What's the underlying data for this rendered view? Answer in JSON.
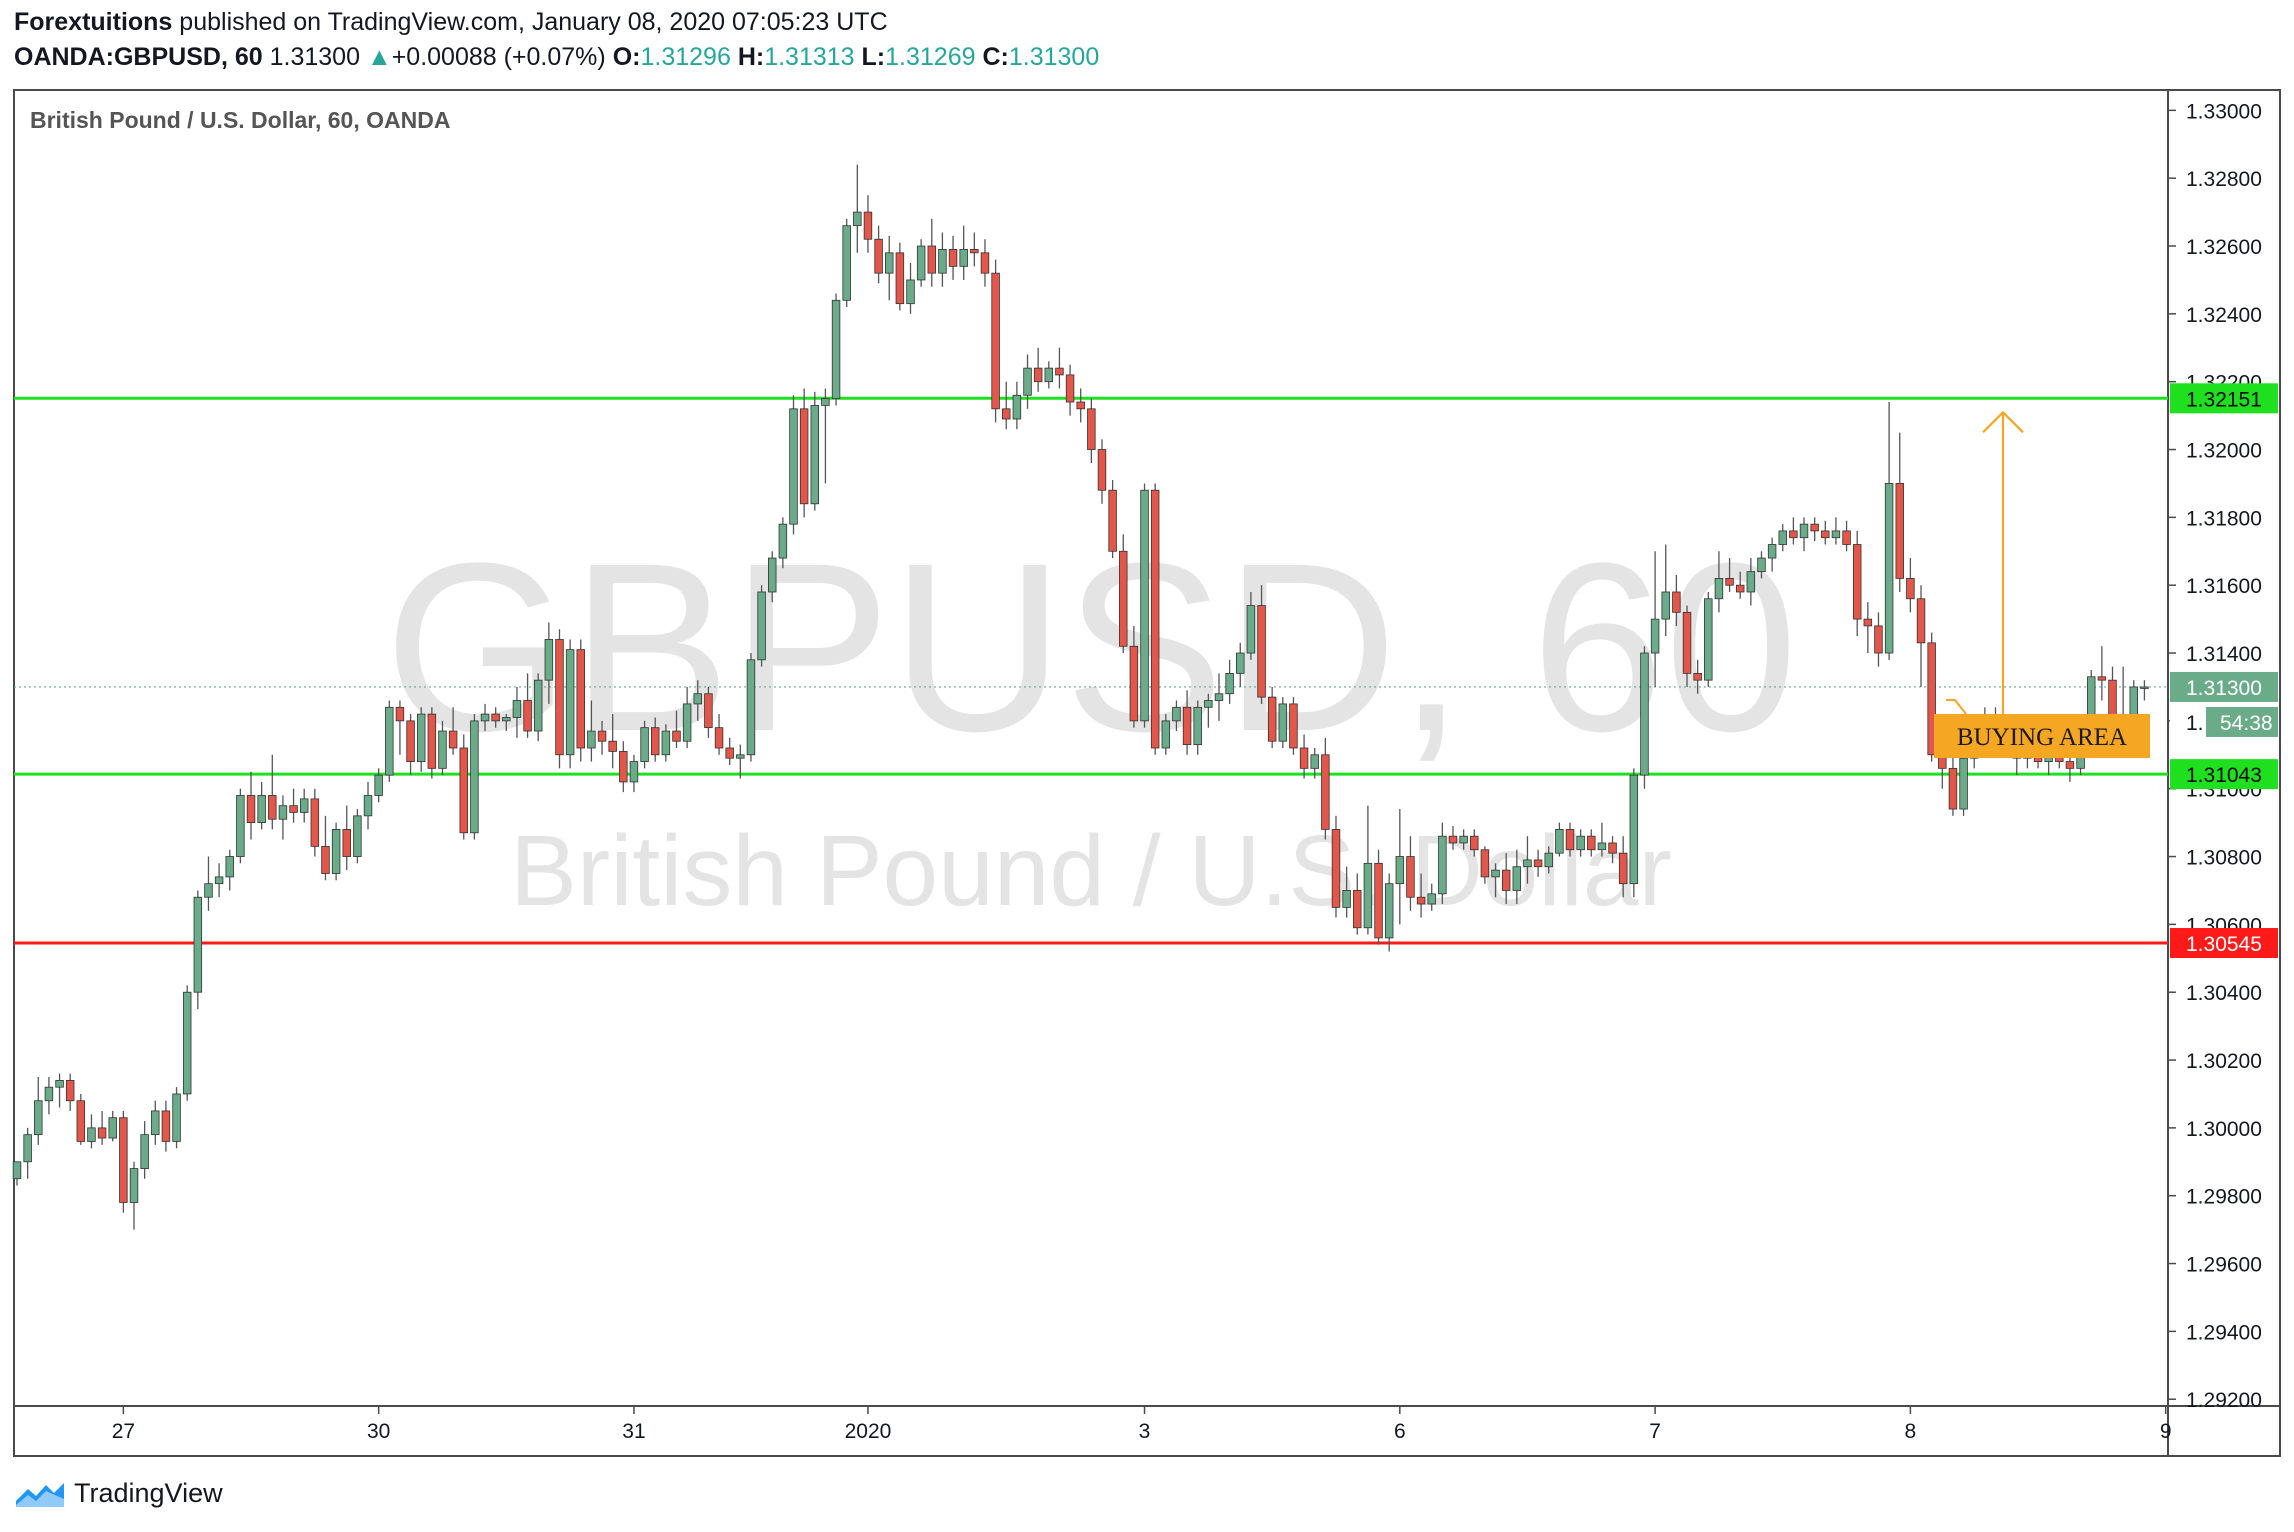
{
  "header": {
    "author": "Forextuitions",
    "published_text": "published on TradingView.com, January 08, 2020 07:05:23 UTC",
    "symbol": "OANDA:GBPUSD, 60",
    "last": "1.31300",
    "change": "+0.00088 (+0.07%)",
    "o_label": "O:",
    "o_val": "1.31296",
    "h_label": "H:",
    "h_val": "1.31313",
    "l_label": "L:",
    "l_val": "1.31269",
    "c_label": "C:",
    "c_val": "1.31300"
  },
  "chart_data": {
    "type": "candlestick",
    "title": "British Pound / U.S. Dollar, 60, OANDA",
    "watermark_symbol": "GBPUSD, 60",
    "watermark_name": "British Pound / U.S. Dollar",
    "ylim": [
      1.2918,
      1.3306
    ],
    "y_ticks": [
      "1.33000",
      "1.32800",
      "1.32600",
      "1.32400",
      "1.32200",
      "1.32000",
      "1.31800",
      "1.31600",
      "1.31400",
      "1.31200",
      "1.31000",
      "1.30800",
      "1.30600",
      "1.30400",
      "1.30200",
      "1.30000",
      "1.29800",
      "1.29600",
      "1.29400",
      "1.29200"
    ],
    "x_labels": [
      {
        "label": "27",
        "index": 10
      },
      {
        "label": "30",
        "index": 34
      },
      {
        "label": "31",
        "index": 58
      },
      {
        "label": "2020",
        "index": 80
      },
      {
        "label": "3",
        "index": 106
      },
      {
        "label": "6",
        "index": 130
      },
      {
        "label": "7",
        "index": 154
      },
      {
        "label": "8",
        "index": 178
      },
      {
        "label": "9",
        "index": 202
      }
    ],
    "x_count": 203,
    "candles": [
      [
        1.2985,
        1.299,
        1.2983,
        1.299
      ],
      [
        1.299,
        1.3,
        1.2985,
        1.2998
      ],
      [
        1.2998,
        1.3015,
        1.2995,
        1.3008
      ],
      [
        1.3008,
        1.3015,
        1.3004,
        1.3012
      ],
      [
        1.3012,
        1.3016,
        1.3006,
        1.3014
      ],
      [
        1.3014,
        1.3016,
        1.3005,
        1.3008
      ],
      [
        1.3008,
        1.301,
        1.2995,
        1.2996
      ],
      [
        1.2996,
        1.3004,
        1.2994,
        1.3
      ],
      [
        1.3,
        1.3005,
        1.2995,
        1.2997
      ],
      [
        1.2997,
        1.3005,
        1.2996,
        1.3003
      ],
      [
        1.3003,
        1.3005,
        1.2975,
        1.2978
      ],
      [
        1.2978,
        1.299,
        1.297,
        1.2988
      ],
      [
        1.2988,
        1.3002,
        1.2985,
        1.2998
      ],
      [
        1.2998,
        1.3008,
        1.2995,
        1.3005
      ],
      [
        1.3005,
        1.3008,
        1.2993,
        1.2996
      ],
      [
        1.2996,
        1.3012,
        1.2994,
        1.301
      ],
      [
        1.301,
        1.3042,
        1.3008,
        1.304
      ],
      [
        1.304,
        1.307,
        1.3035,
        1.3068
      ],
      [
        1.3068,
        1.308,
        1.3064,
        1.3072
      ],
      [
        1.3072,
        1.3078,
        1.3068,
        1.3074
      ],
      [
        1.3074,
        1.3082,
        1.307,
        1.308
      ],
      [
        1.308,
        1.31,
        1.3078,
        1.3098
      ],
      [
        1.3098,
        1.3105,
        1.3085,
        1.309
      ],
      [
        1.309,
        1.3102,
        1.3088,
        1.3098
      ],
      [
        1.3098,
        1.311,
        1.3088,
        1.3091
      ],
      [
        1.3091,
        1.3098,
        1.3085,
        1.3095
      ],
      [
        1.3095,
        1.31,
        1.309,
        1.3093
      ],
      [
        1.3093,
        1.31,
        1.309,
        1.3097
      ],
      [
        1.3097,
        1.31,
        1.308,
        1.3083
      ],
      [
        1.3083,
        1.3092,
        1.3073,
        1.3075
      ],
      [
        1.3075,
        1.309,
        1.3073,
        1.3088
      ],
      [
        1.3088,
        1.3095,
        1.3076,
        1.308
      ],
      [
        1.308,
        1.3094,
        1.3078,
        1.3092
      ],
      [
        1.3092,
        1.3102,
        1.3088,
        1.3098
      ],
      [
        1.3098,
        1.3106,
        1.3096,
        1.3104
      ],
      [
        1.3104,
        1.3126,
        1.3102,
        1.3124
      ],
      [
        1.3124,
        1.3126,
        1.311,
        1.312
      ],
      [
        1.312,
        1.3122,
        1.3104,
        1.3108
      ],
      [
        1.3108,
        1.3124,
        1.3105,
        1.3122
      ],
      [
        1.3122,
        1.3124,
        1.3103,
        1.3106
      ],
      [
        1.3106,
        1.312,
        1.3104,
        1.3117
      ],
      [
        1.3117,
        1.3124,
        1.311,
        1.3112
      ],
      [
        1.3112,
        1.3116,
        1.3085,
        1.3087
      ],
      [
        1.3087,
        1.3122,
        1.3085,
        1.312
      ],
      [
        1.312,
        1.3125,
        1.3117,
        1.3122
      ],
      [
        1.3122,
        1.3124,
        1.3118,
        1.312
      ],
      [
        1.312,
        1.3122,
        1.3117,
        1.3121
      ],
      [
        1.3121,
        1.313,
        1.3115,
        1.3126
      ],
      [
        1.3126,
        1.3134,
        1.3115,
        1.3117
      ],
      [
        1.3117,
        1.3134,
        1.3114,
        1.3132
      ],
      [
        1.3132,
        1.3149,
        1.3125,
        1.3144
      ],
      [
        1.3144,
        1.3147,
        1.3106,
        1.311
      ],
      [
        1.311,
        1.3144,
        1.3106,
        1.3141
      ],
      [
        1.3141,
        1.3144,
        1.3108,
        1.3112
      ],
      [
        1.3112,
        1.3126,
        1.3108,
        1.3117
      ],
      [
        1.3117,
        1.312,
        1.311,
        1.3114
      ],
      [
        1.3114,
        1.3122,
        1.3106,
        1.3111
      ],
      [
        1.3111,
        1.3114,
        1.3099,
        1.3102
      ],
      [
        1.3102,
        1.311,
        1.3099,
        1.3108
      ],
      [
        1.3108,
        1.312,
        1.3106,
        1.3118
      ],
      [
        1.3118,
        1.3121,
        1.3108,
        1.311
      ],
      [
        1.311,
        1.3119,
        1.3108,
        1.3117
      ],
      [
        1.3117,
        1.3123,
        1.3112,
        1.3114
      ],
      [
        1.3114,
        1.313,
        1.3112,
        1.3125
      ],
      [
        1.3125,
        1.3132,
        1.312,
        1.3128
      ],
      [
        1.3128,
        1.313,
        1.3115,
        1.3118
      ],
      [
        1.3118,
        1.3122,
        1.311,
        1.3112
      ],
      [
        1.3112,
        1.3115,
        1.3107,
        1.3109
      ],
      [
        1.3109,
        1.3113,
        1.3103,
        1.311
      ],
      [
        1.311,
        1.314,
        1.3108,
        1.3138
      ],
      [
        1.3138,
        1.316,
        1.3136,
        1.3158
      ],
      [
        1.3158,
        1.317,
        1.3155,
        1.3168
      ],
      [
        1.3168,
        1.318,
        1.3165,
        1.3178
      ],
      [
        1.3178,
        1.3216,
        1.3175,
        1.3212
      ],
      [
        1.3212,
        1.3218,
        1.318,
        1.3184
      ],
      [
        1.3184,
        1.3217,
        1.3182,
        1.3213
      ],
      [
        1.3213,
        1.3218,
        1.319,
        1.3215
      ],
      [
        1.3215,
        1.3246,
        1.3213,
        1.3244
      ],
      [
        1.3244,
        1.3268,
        1.3242,
        1.3266
      ],
      [
        1.3266,
        1.3284,
        1.3258,
        1.327
      ],
      [
        1.327,
        1.3275,
        1.3258,
        1.3262
      ],
      [
        1.3262,
        1.3266,
        1.3249,
        1.3252
      ],
      [
        1.3252,
        1.3263,
        1.3244,
        1.3258
      ],
      [
        1.3258,
        1.3261,
        1.3241,
        1.3243
      ],
      [
        1.3243,
        1.3255,
        1.324,
        1.325
      ],
      [
        1.325,
        1.3262,
        1.3248,
        1.326
      ],
      [
        1.326,
        1.3268,
        1.3248,
        1.3252
      ],
      [
        1.3252,
        1.3264,
        1.3248,
        1.3259
      ],
      [
        1.3259,
        1.3263,
        1.325,
        1.3254
      ],
      [
        1.3254,
        1.3266,
        1.325,
        1.3259
      ],
      [
        1.3259,
        1.3264,
        1.3254,
        1.3258
      ],
      [
        1.3258,
        1.3262,
        1.3248,
        1.3252
      ],
      [
        1.3252,
        1.3256,
        1.3208,
        1.3212
      ],
      [
        1.3212,
        1.322,
        1.3206,
        1.3209
      ],
      [
        1.3209,
        1.322,
        1.3206,
        1.3216
      ],
      [
        1.3216,
        1.3228,
        1.3212,
        1.3224
      ],
      [
        1.3224,
        1.323,
        1.3217,
        1.322
      ],
      [
        1.322,
        1.3226,
        1.3218,
        1.3224
      ],
      [
        1.3224,
        1.323,
        1.3218,
        1.3222
      ],
      [
        1.3222,
        1.3225,
        1.321,
        1.3214
      ],
      [
        1.3214,
        1.3218,
        1.3208,
        1.3212
      ],
      [
        1.3212,
        1.3215,
        1.3196,
        1.32
      ],
      [
        1.32,
        1.3203,
        1.3184,
        1.3188
      ],
      [
        1.3188,
        1.3191,
        1.3168,
        1.317
      ],
      [
        1.317,
        1.3175,
        1.314,
        1.3142
      ],
      [
        1.3142,
        1.3148,
        1.3118,
        1.312
      ],
      [
        1.312,
        1.319,
        1.3118,
        1.3188
      ],
      [
        1.3188,
        1.319,
        1.311,
        1.3112
      ],
      [
        1.3112,
        1.3122,
        1.311,
        1.312
      ],
      [
        1.312,
        1.3126,
        1.3117,
        1.3124
      ],
      [
        1.3124,
        1.3129,
        1.311,
        1.3113
      ],
      [
        1.3113,
        1.3126,
        1.311,
        1.3124
      ],
      [
        1.3124,
        1.3128,
        1.3118,
        1.3126
      ],
      [
        1.3126,
        1.3134,
        1.312,
        1.3128
      ],
      [
        1.3128,
        1.3138,
        1.3125,
        1.3134
      ],
      [
        1.3134,
        1.3143,
        1.313,
        1.314
      ],
      [
        1.314,
        1.3158,
        1.3138,
        1.3154
      ],
      [
        1.3154,
        1.316,
        1.3125,
        1.3127
      ],
      [
        1.3127,
        1.313,
        1.3112,
        1.3114
      ],
      [
        1.3114,
        1.3127,
        1.3112,
        1.3125
      ],
      [
        1.3125,
        1.3127,
        1.311,
        1.3112
      ],
      [
        1.3112,
        1.3116,
        1.3103,
        1.3106
      ],
      [
        1.3106,
        1.3112,
        1.3103,
        1.311
      ],
      [
        1.311,
        1.3115,
        1.3085,
        1.3088
      ],
      [
        1.3088,
        1.3092,
        1.3062,
        1.3065
      ],
      [
        1.3065,
        1.3077,
        1.3062,
        1.307
      ],
      [
        1.307,
        1.3075,
        1.3057,
        1.3059
      ],
      [
        1.3059,
        1.3095,
        1.3057,
        1.3078
      ],
      [
        1.3078,
        1.3082,
        1.3054,
        1.3056
      ],
      [
        1.3056,
        1.3075,
        1.3052,
        1.3072
      ],
      [
        1.3072,
        1.3094,
        1.306,
        1.308
      ],
      [
        1.308,
        1.3086,
        1.3064,
        1.3068
      ],
      [
        1.3068,
        1.3075,
        1.3062,
        1.3066
      ],
      [
        1.3066,
        1.3072,
        1.3064,
        1.3069
      ],
      [
        1.3069,
        1.309,
        1.3066,
        1.3086
      ],
      [
        1.3086,
        1.3089,
        1.3082,
        1.3084
      ],
      [
        1.3084,
        1.3088,
        1.3082,
        1.3086
      ],
      [
        1.3086,
        1.3088,
        1.308,
        1.3082
      ],
      [
        1.3082,
        1.3083,
        1.3072,
        1.3074
      ],
      [
        1.3074,
        1.3078,
        1.3068,
        1.3076
      ],
      [
        1.3076,
        1.3081,
        1.3066,
        1.307
      ],
      [
        1.307,
        1.3082,
        1.3066,
        1.3077
      ],
      [
        1.3077,
        1.3086,
        1.3072,
        1.3079
      ],
      [
        1.3079,
        1.3082,
        1.3074,
        1.3077
      ],
      [
        1.3077,
        1.3083,
        1.3075,
        1.3081
      ],
      [
        1.3081,
        1.309,
        1.308,
        1.3088
      ],
      [
        1.3088,
        1.309,
        1.308,
        1.3082
      ],
      [
        1.3082,
        1.3088,
        1.308,
        1.3086
      ],
      [
        1.3086,
        1.3088,
        1.308,
        1.3082
      ],
      [
        1.3082,
        1.309,
        1.308,
        1.3084
      ],
      [
        1.3084,
        1.3086,
        1.3078,
        1.3081
      ],
      [
        1.3081,
        1.3086,
        1.3068,
        1.3072
      ],
      [
        1.3072,
        1.3106,
        1.3068,
        1.3104
      ],
      [
        1.3104,
        1.3142,
        1.31,
        1.314
      ],
      [
        1.314,
        1.317,
        1.313,
        1.315
      ],
      [
        1.315,
        1.3172,
        1.3145,
        1.3158
      ],
      [
        1.3158,
        1.3163,
        1.3148,
        1.3152
      ],
      [
        1.3152,
        1.3154,
        1.313,
        1.3134
      ],
      [
        1.3134,
        1.3138,
        1.3128,
        1.3132
      ],
      [
        1.3132,
        1.3158,
        1.313,
        1.3156
      ],
      [
        1.3156,
        1.317,
        1.3152,
        1.3162
      ],
      [
        1.3162,
        1.3168,
        1.3158,
        1.316
      ],
      [
        1.316,
        1.3164,
        1.3156,
        1.3158
      ],
      [
        1.3158,
        1.3168,
        1.3154,
        1.3164
      ],
      [
        1.3164,
        1.317,
        1.3162,
        1.3168
      ],
      [
        1.3168,
        1.3174,
        1.3164,
        1.3172
      ],
      [
        1.3172,
        1.3178,
        1.317,
        1.3176
      ],
      [
        1.3176,
        1.318,
        1.3172,
        1.3174
      ],
      [
        1.3174,
        1.318,
        1.317,
        1.3178
      ],
      [
        1.3178,
        1.318,
        1.3173,
        1.3176
      ],
      [
        1.3176,
        1.3179,
        1.3172,
        1.3174
      ],
      [
        1.3174,
        1.318,
        1.3172,
        1.3176
      ],
      [
        1.3176,
        1.3179,
        1.317,
        1.3172
      ],
      [
        1.3172,
        1.3176,
        1.3145,
        1.315
      ],
      [
        1.315,
        1.3155,
        1.314,
        1.3148
      ],
      [
        1.3148,
        1.3152,
        1.3136,
        1.314
      ],
      [
        1.314,
        1.3214,
        1.3138,
        1.319
      ],
      [
        1.319,
        1.3205,
        1.3158,
        1.3162
      ],
      [
        1.3162,
        1.3168,
        1.3152,
        1.3156
      ],
      [
        1.3156,
        1.316,
        1.313,
        1.3143
      ],
      [
        1.3143,
        1.3146,
        1.3108,
        1.311
      ],
      [
        1.311,
        1.3116,
        1.31,
        1.3106
      ],
      [
        1.3106,
        1.3112,
        1.3092,
        1.3094
      ],
      [
        1.3094,
        1.3112,
        1.3092,
        1.3109
      ],
      [
        1.3109,
        1.312,
        1.3106,
        1.3116
      ],
      [
        1.3116,
        1.3124,
        1.3112,
        1.312
      ],
      [
        1.312,
        1.3124,
        1.3116,
        1.3119
      ],
      [
        1.3119,
        1.3122,
        1.3112,
        1.3114
      ],
      [
        1.3114,
        1.3118,
        1.3104,
        1.3109
      ],
      [
        1.3109,
        1.3116,
        1.3106,
        1.3111
      ],
      [
        1.3111,
        1.3116,
        1.3106,
        1.3108
      ],
      [
        1.3108,
        1.3114,
        1.3104,
        1.3112
      ],
      [
        1.3112,
        1.3116,
        1.3106,
        1.3108
      ],
      [
        1.3108,
        1.3112,
        1.3102,
        1.3106
      ],
      [
        1.3106,
        1.3114,
        1.3104,
        1.3112
      ],
      [
        1.3112,
        1.3135,
        1.311,
        1.3133
      ],
      [
        1.3133,
        1.3142,
        1.3126,
        1.3132
      ],
      [
        1.3132,
        1.3136,
        1.311,
        1.3118
      ],
      [
        1.3118,
        1.3136,
        1.3112,
        1.3114
      ],
      [
        1.3114,
        1.3132,
        1.3112,
        1.313
      ],
      [
        1.313,
        1.3132,
        1.3126,
        1.313
      ]
    ],
    "horizontal_lines": [
      {
        "label": "1.32151",
        "value": 1.32151,
        "color": "#1fe01f"
      },
      {
        "label": "1.31043",
        "value": 1.31043,
        "color": "#1fe01f"
      },
      {
        "label": "1.30545",
        "value": 1.30545,
        "color": "#ff1a1a"
      }
    ],
    "last_price": {
      "label": "1.31300",
      "value": 1.313,
      "color": "#6aab89"
    },
    "countdown": {
      "left": "1.",
      "right": "54:38"
    },
    "annotation": {
      "text": "BUYING AREA",
      "color": "#f5a623"
    },
    "colors": {
      "up": "#6aab89",
      "down": "#e3564a",
      "wick": "#555555"
    }
  },
  "footer": {
    "brand": "TradingView"
  }
}
